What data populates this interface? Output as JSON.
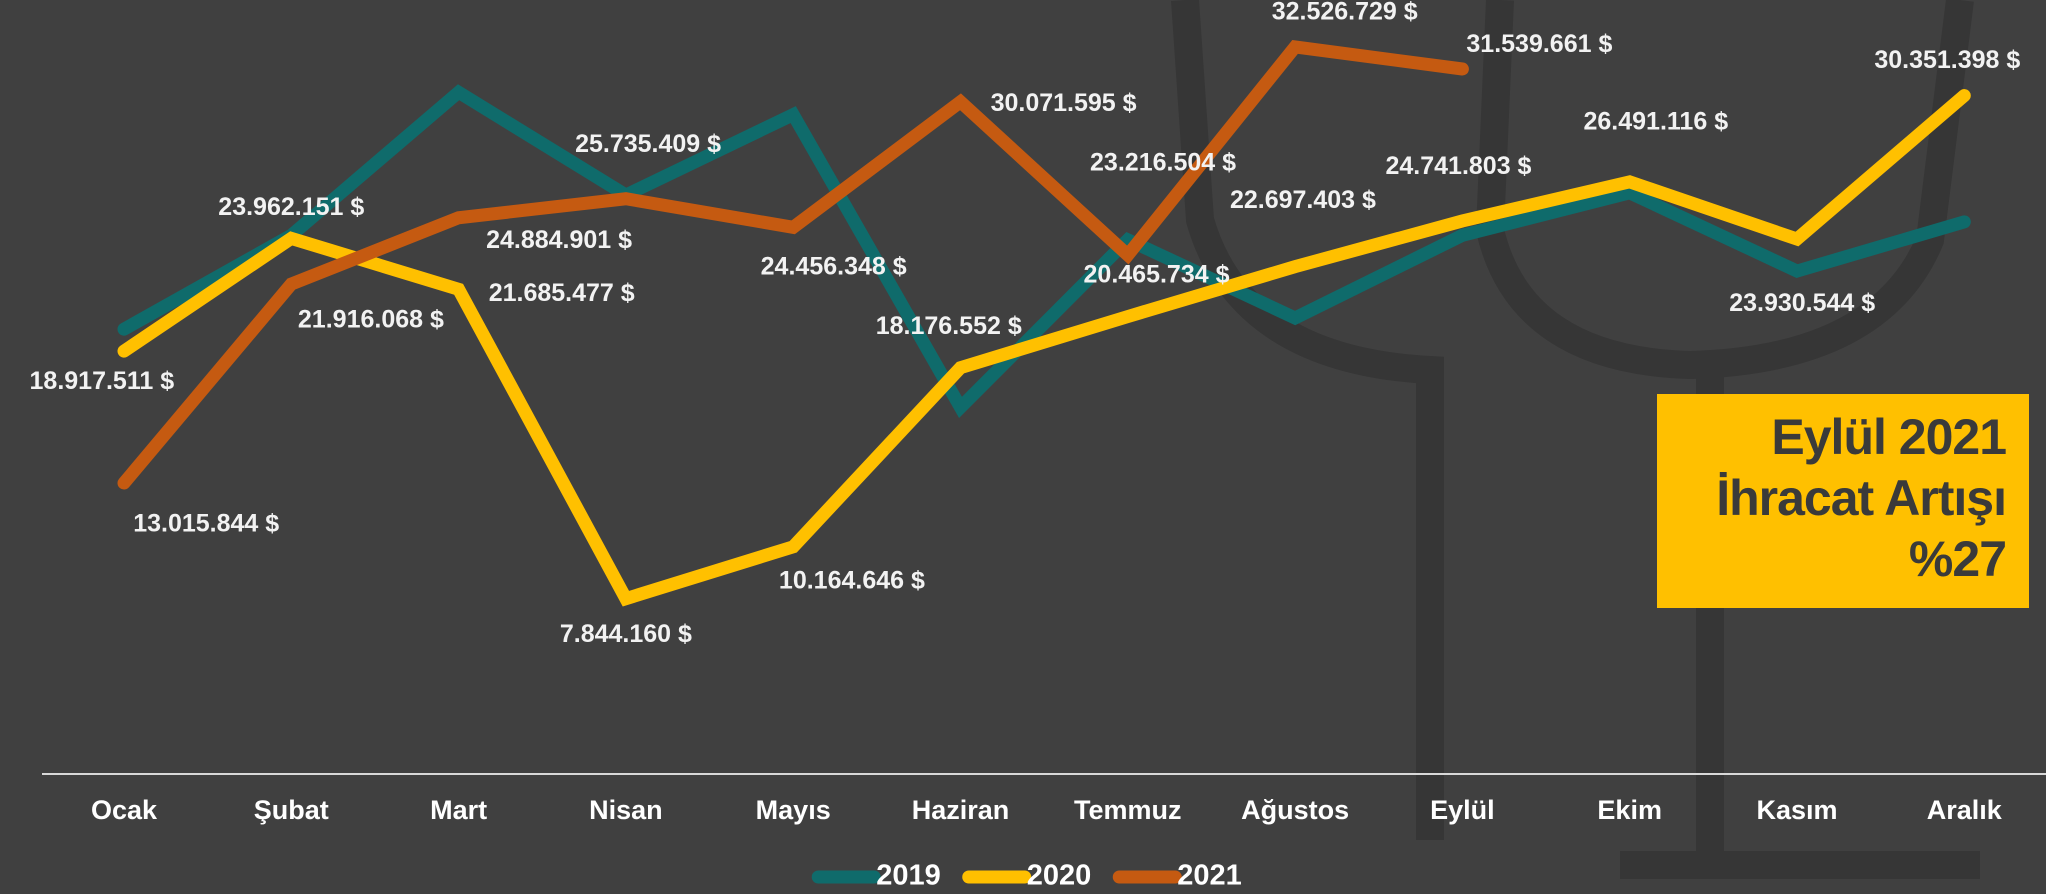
{
  "chart_data": {
    "type": "line",
    "categories": [
      "Ocak",
      "Şubat",
      "Mart",
      "Nisan",
      "Mayıs",
      "Haziran",
      "Temmuz",
      "Ağustos",
      "Eylül",
      "Ekim",
      "Kasım",
      "Aralık"
    ],
    "ylim": [
      0,
      34000000
    ],
    "series": [
      {
        "name": "2019",
        "color": "#0f6b6b",
        "values": [
          19900000,
          24100000,
          30500000,
          25900000,
          29500000,
          16400000,
          23900000,
          20400000,
          24100000,
          26000000,
          22500000,
          24700000
        ]
      },
      {
        "name": "2020",
        "color": "#ffc000",
        "values": [
          18917511,
          23962151,
          21685477,
          7844160,
          10164646,
          18176552,
          20465734,
          22697403,
          24741803,
          26491116,
          23930544,
          30351398
        ],
        "value_labels": [
          "18.917.511 $",
          "23.962.151 $",
          "21.685.477 $",
          "7.844.160 $",
          "10.164.646 $",
          "18.176.552 $",
          "20.465.734 $",
          "22.697.403 $",
          "24.741.803 $",
          "26.491.116 $",
          "23.930.544 $",
          "30.351.398 $"
        ]
      },
      {
        "name": "2021",
        "color": "#c55a11",
        "values": [
          13015844,
          21916068,
          24884901,
          25735409,
          24456348,
          30071595,
          23216504,
          32526729,
          31539661,
          null,
          null,
          null
        ],
        "value_labels": [
          "13.015.844 $",
          "21.916.068 $",
          "24.884.901 $",
          "25.735.409 $",
          "24.456.348 $",
          "30.071.595 $",
          "23.216.504 $",
          "32.526.729 $",
          "31.539.661 $",
          null,
          null,
          null
        ]
      }
    ],
    "annotation": [
      "Eylül 2021",
      "İhracat Artışı",
      "%27"
    ],
    "annotation_color": "#ffc000",
    "legend": "bottom"
  }
}
